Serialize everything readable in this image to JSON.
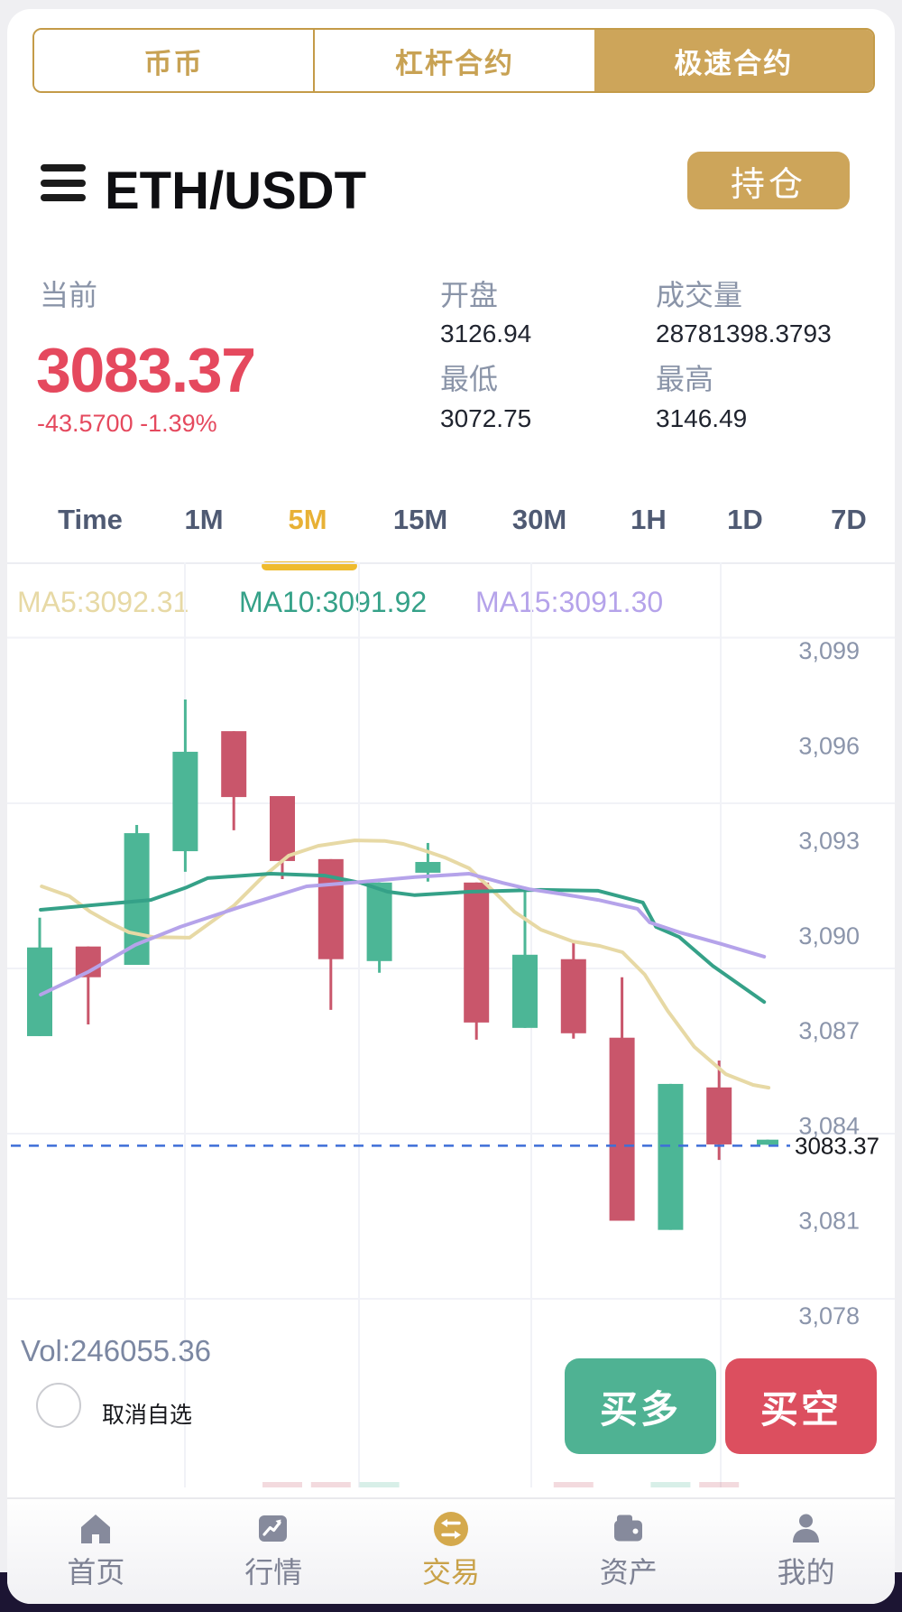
{
  "colors": {
    "gold_border": "#c49b48",
    "gold_bg": "#cda55a",
    "gold_text": "#c8a254",
    "down_red": "#e5495e",
    "up_green": "#4fb293",
    "button_red": "#dc4f5f",
    "interval_active": "#e8b135",
    "underline": "#efbb2e",
    "footer_active": "#c9a24a",
    "footer_inactive": "#7e8294"
  },
  "top_tabs": {
    "items": [
      {
        "label": "币币",
        "active": false
      },
      {
        "label": "杠杆合约",
        "active": false
      },
      {
        "label": "极速合约",
        "active": true
      }
    ]
  },
  "header": {
    "symbol": "ETH/USDT",
    "position_button": "持仓"
  },
  "stats": {
    "current_label": "当前",
    "current_price": "3083.37",
    "change": "-43.5700 -1.39%",
    "open_label": "开盘",
    "open_value": "3126.94",
    "volume_label": "成交量",
    "volume_value": "28781398.3793",
    "low_label": "最低",
    "low_value": "3072.75",
    "high_label": "最高",
    "high_value": "3146.49"
  },
  "intervals": {
    "items": [
      "Time",
      "1M",
      "5M",
      "15M",
      "30M",
      "1H",
      "1D",
      "7D"
    ],
    "active": "5M"
  },
  "ma_legend": [
    {
      "label": "MA5:3092.31",
      "color": "#e7d9a5"
    },
    {
      "label": "MA10:3091.92",
      "color": "#35a188"
    },
    {
      "label": "MA15:3091.30",
      "color": "#b5a3ea"
    }
  ],
  "chart_data": {
    "type": "candlestick",
    "up_color": "#4cb696",
    "down_color": "#c9566b",
    "y_tick_labels": [
      "3,099",
      "3,096",
      "3,093",
      "3,090",
      "3,087",
      "3,084",
      "3,081",
      "3,078"
    ],
    "y_ticks": [
      3099,
      3096,
      3093,
      3090,
      3087,
      3084,
      3081,
      3078
    ],
    "ylim": [
      3077.2,
      3099.8
    ],
    "price_line": {
      "value": 3083.37,
      "label": "3083.37",
      "color": "#3e6fd8"
    },
    "candles": [
      {
        "o": 3086.83,
        "h": 3090.57,
        "l": 3086.83,
        "c": 3089.63
      },
      {
        "o": 3089.66,
        "h": 3089.66,
        "l": 3087.2,
        "c": 3088.69
      },
      {
        "o": 3089.08,
        "h": 3093.5,
        "l": 3089.08,
        "c": 3093.24
      },
      {
        "o": 3092.67,
        "h": 3097.46,
        "l": 3092.02,
        "c": 3095.81
      },
      {
        "o": 3096.46,
        "h": 3096.46,
        "l": 3093.33,
        "c": 3094.38
      },
      {
        "o": 3094.41,
        "h": 3094.41,
        "l": 3091.79,
        "c": 3092.36
      },
      {
        "o": 3092.42,
        "h": 3092.42,
        "l": 3087.66,
        "c": 3089.26
      },
      {
        "o": 3089.2,
        "h": 3091.68,
        "l": 3088.83,
        "c": 3091.68
      },
      {
        "o": 3091.99,
        "h": 3092.93,
        "l": 3091.71,
        "c": 3092.33
      },
      {
        "o": 3091.68,
        "h": 3091.68,
        "l": 3086.72,
        "c": 3087.26
      },
      {
        "o": 3087.09,
        "h": 3091.48,
        "l": 3087.09,
        "c": 3089.4
      },
      {
        "o": 3089.26,
        "h": 3089.83,
        "l": 3086.75,
        "c": 3086.92
      },
      {
        "o": 3086.78,
        "h": 3088.69,
        "l": 3081.0,
        "c": 3081.0
      },
      {
        "o": 3080.71,
        "h": 3085.32,
        "l": 3080.71,
        "c": 3085.32
      },
      {
        "o": 3085.21,
        "h": 3086.06,
        "l": 3082.92,
        "c": 3083.41
      },
      {
        "o": 3083.4,
        "h": 3083.56,
        "l": 3083.4,
        "c": 3083.56,
        "w": 24
      }
    ],
    "ma_series": [
      {
        "name": "MA5",
        "color": "#e7d9a5",
        "points": [
          [
            0.04,
            3091.56
          ],
          [
            0.61,
            3091.25
          ],
          [
            1.04,
            3090.76
          ],
          [
            1.47,
            3090.39
          ],
          [
            1.84,
            3090.11
          ],
          [
            2.34,
            3089.96
          ],
          [
            3.09,
            3089.94
          ],
          [
            4.01,
            3090.96
          ],
          [
            4.57,
            3091.82
          ],
          [
            5.13,
            3092.53
          ],
          [
            5.74,
            3092.84
          ],
          [
            6.49,
            3093.01
          ],
          [
            7.12,
            3092.99
          ],
          [
            7.49,
            3092.9
          ],
          [
            7.97,
            3092.67
          ],
          [
            8.35,
            3092.47
          ],
          [
            8.85,
            3092.13
          ],
          [
            9.31,
            3091.47
          ],
          [
            9.78,
            3090.76
          ],
          [
            10.33,
            3090.19
          ],
          [
            10.99,
            3089.82
          ],
          [
            11.54,
            3089.68
          ],
          [
            12.01,
            3089.48
          ],
          [
            12.47,
            3088.77
          ],
          [
            12.94,
            3087.63
          ],
          [
            13.49,
            3086.49
          ],
          [
            14.14,
            3085.63
          ],
          [
            14.7,
            3085.29
          ],
          [
            15.02,
            3085.2
          ]
        ]
      },
      {
        "name": "MA10",
        "color": "#35a188",
        "points": [
          [
            0.02,
            3090.82
          ],
          [
            2.29,
            3091.13
          ],
          [
            3.03,
            3091.53
          ],
          [
            3.46,
            3091.82
          ],
          [
            4.76,
            3091.96
          ],
          [
            5.87,
            3091.9
          ],
          [
            6.62,
            3091.67
          ],
          [
            7.17,
            3091.39
          ],
          [
            7.73,
            3091.28
          ],
          [
            8.85,
            3091.39
          ],
          [
            10.33,
            3091.45
          ],
          [
            11.51,
            3091.42
          ],
          [
            12.01,
            3091.22
          ],
          [
            12.43,
            3091.05
          ],
          [
            12.7,
            3090.28
          ],
          [
            13.18,
            3089.96
          ],
          [
            13.87,
            3089.05
          ],
          [
            14.93,
            3087.91
          ]
        ]
      },
      {
        "name": "MA15",
        "color": "#b5a3ea",
        "points": [
          [
            0.02,
            3088.14
          ],
          [
            0.99,
            3088.85
          ],
          [
            1.97,
            3089.71
          ],
          [
            2.9,
            3090.28
          ],
          [
            4.11,
            3090.9
          ],
          [
            5.5,
            3091.56
          ],
          [
            6.62,
            3091.7
          ],
          [
            7.73,
            3091.85
          ],
          [
            8.85,
            3091.96
          ],
          [
            9.54,
            3091.67
          ],
          [
            10.09,
            3091.47
          ],
          [
            10.71,
            3091.33
          ],
          [
            11.51,
            3091.13
          ],
          [
            12.32,
            3090.85
          ],
          [
            12.57,
            3090.42
          ],
          [
            13.18,
            3090.11
          ],
          [
            14.05,
            3089.74
          ],
          [
            14.93,
            3089.34
          ]
        ]
      }
    ],
    "volume_bars": [
      {
        "i": 5,
        "dir": "down"
      },
      {
        "i": 6,
        "dir": "down"
      },
      {
        "i": 7,
        "dir": "up"
      },
      {
        "i": 11,
        "dir": "down"
      },
      {
        "i": 13,
        "dir": "up"
      },
      {
        "i": 14,
        "dir": "down"
      }
    ]
  },
  "vol_label": "Vol:246055.36",
  "watch": {
    "label": "取消自选"
  },
  "trade_buttons": {
    "long": "买多",
    "short": "买空"
  },
  "footer": {
    "items": [
      {
        "label": "首页",
        "icon": "home-icon",
        "active": false
      },
      {
        "label": "行情",
        "icon": "market-icon",
        "active": false
      },
      {
        "label": "交易",
        "icon": "trade-icon",
        "active": true
      },
      {
        "label": "资产",
        "icon": "assets-icon",
        "active": false
      },
      {
        "label": "我的",
        "icon": "profile-icon",
        "active": false
      }
    ]
  }
}
